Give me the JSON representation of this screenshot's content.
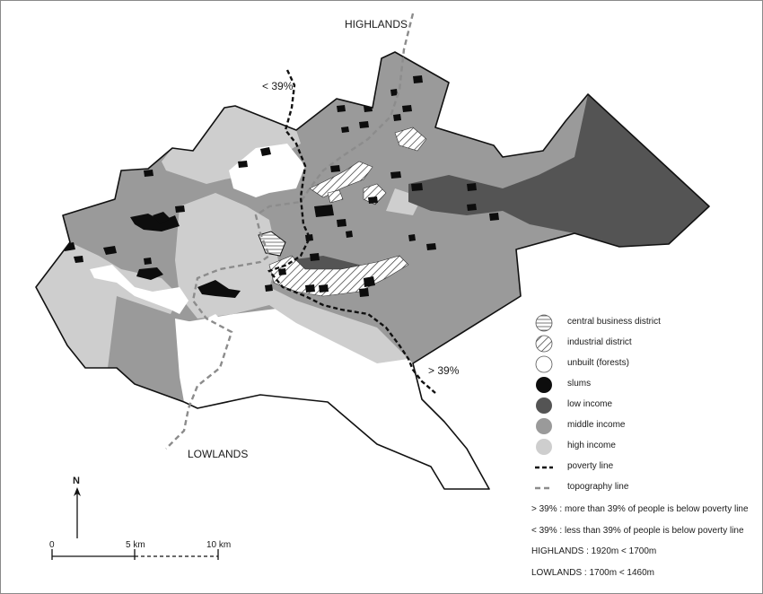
{
  "labels": {
    "highlands": "HIGHLANDS",
    "lowlands": "LOWLANDS",
    "less_39": "< 39%",
    "more_39": "> 39%"
  },
  "north_arrow": {
    "label": "N"
  },
  "scale_bar": {
    "ticks": [
      "0",
      "5 km",
      "10 km"
    ]
  },
  "legend": {
    "items": [
      {
        "label": "central business district",
        "swatch": "cbd"
      },
      {
        "label": "industrial district",
        "swatch": "industrial"
      },
      {
        "label": "unbuilt (forests)",
        "swatch": "unbuilt"
      },
      {
        "label": "slums",
        "swatch": "slums"
      },
      {
        "label": "low income",
        "swatch": "low"
      },
      {
        "label": "middle income",
        "swatch": "middle"
      },
      {
        "label": "high income",
        "swatch": "high"
      },
      {
        "label": "poverty line",
        "swatch": "poverty-line"
      },
      {
        "label": "topography line",
        "swatch": "topography-line"
      }
    ],
    "notes": [
      "> 39% : more than 39% of people is below poverty line",
      "< 39% : less than 39% of people is below poverty line",
      "HIGHLANDS : 1920m < 1700m",
      "LOWLANDS : 1700m < 1460m"
    ]
  },
  "colors": {
    "slums": "#0d0d0d",
    "low_income": "#545454",
    "middle_income": "#9a9a9a",
    "high_income": "#cecece",
    "unbuilt": "#ffffff",
    "outline": "#111111",
    "topography_line": "#8c8c8c"
  }
}
